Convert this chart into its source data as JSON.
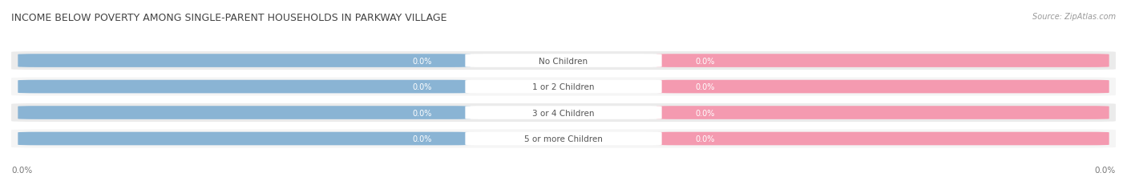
{
  "title": "INCOME BELOW POVERTY AMONG SINGLE-PARENT HOUSEHOLDS IN PARKWAY VILLAGE",
  "source": "Source: ZipAtlas.com",
  "categories": [
    "No Children",
    "1 or 2 Children",
    "3 or 4 Children",
    "5 or more Children"
  ],
  "father_values": [
    0.0,
    0.0,
    0.0,
    0.0
  ],
  "mother_values": [
    0.0,
    0.0,
    0.0,
    0.0
  ],
  "father_color": "#8ab4d4",
  "mother_color": "#f49ab0",
  "row_bg_odd": "#ebebeb",
  "row_bg_even": "#f5f5f5",
  "label_color": "#ffffff",
  "category_text_color": "#555555",
  "axis_label": "0.0%",
  "background_color": "#ffffff",
  "title_fontsize": 9,
  "source_fontsize": 7,
  "bar_value_fontsize": 7,
  "cat_fontsize": 7.5
}
